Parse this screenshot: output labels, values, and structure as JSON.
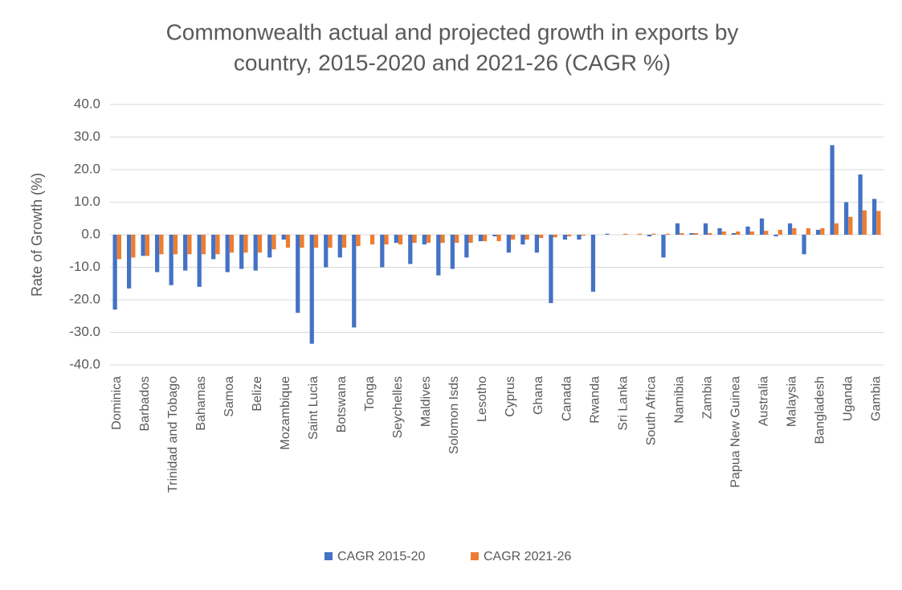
{
  "chart_data": {
    "type": "bar",
    "title": [
      "Commonwealth actual and projected growth in exports by",
      "country, 2015-2020 and 2021-26 (CAGR %)"
    ],
    "y_label": "Rate of Growth (%)",
    "categories": [
      "Dominica",
      null,
      "Barbados",
      null,
      "Trinidad and Tobago",
      null,
      "Bahamas",
      null,
      "Samoa",
      null,
      "Belize",
      null,
      "Mozambique",
      null,
      "Saint Lucia",
      null,
      "Botswana",
      null,
      "Tonga",
      null,
      "Seychelles",
      null,
      "Maldives",
      null,
      "Solomon Isds",
      null,
      "Lesotho",
      null,
      "Cyprus",
      null,
      "Ghana",
      null,
      "Canada",
      null,
      "Rwanda",
      null,
      "Sri Lanka",
      null,
      "South Africa",
      null,
      "Namibia",
      null,
      "Zambia",
      null,
      "Papua New Guinea",
      null,
      "Australia",
      null,
      "Malaysia",
      null,
      "Bangladesh",
      null,
      "Uganda",
      null,
      "Gambia"
    ],
    "series": [
      {
        "name": "CAGR 2015-20",
        "color": "#4472c4",
        "values": [
          -23,
          -16.5,
          -6.5,
          -11.5,
          -15.5,
          -11,
          -16,
          -7.5,
          -11.5,
          -10.5,
          -11,
          -7,
          -1.5,
          -24,
          -33.5,
          -10,
          -7,
          -28.5,
          0,
          -10,
          -2.5,
          -9,
          -3,
          -12.5,
          -10.5,
          -7,
          -2,
          -0.5,
          -5.5,
          -3,
          -5.5,
          -21,
          -1.5,
          -1.5,
          -17.5,
          0.3,
          0,
          0,
          -0.5,
          -7,
          3.5,
          0.5,
          3.5,
          2,
          0.5,
          2.5,
          5,
          -0.5,
          3.5,
          -6,
          1.5,
          27.5,
          10,
          18.5,
          11
        ]
      },
      {
        "name": "CAGR 2021-26",
        "color": "#ed7d31",
        "values": [
          -7.5,
          -7,
          -6.5,
          -6,
          -6,
          -6,
          -6,
          -6,
          -5.5,
          -5.5,
          -5.5,
          -4.5,
          -4,
          -4,
          -4,
          -4,
          -4,
          -3.5,
          -3,
          -3,
          -3,
          -2.5,
          -2.5,
          -2.5,
          -2.5,
          -2.5,
          -2,
          -2,
          -1.5,
          -1.5,
          -1,
          -0.8,
          -0.5,
          -0.3,
          0,
          0,
          0.3,
          0.3,
          0.3,
          0.3,
          0.5,
          0.5,
          0.5,
          1,
          1,
          1,
          1.2,
          1.5,
          2,
          2,
          2,
          3.5,
          5.5,
          7.5,
          7.3
        ]
      }
    ],
    "ylim": [
      -40,
      40
    ],
    "yticks": [
      {
        "value": -40,
        "label": "-40.0"
      },
      {
        "value": -30,
        "label": "-30.0"
      },
      {
        "value": -20,
        "label": "-20.0"
      },
      {
        "value": -10,
        "label": "-10.0"
      },
      {
        "value": 0,
        "label": "0.0"
      },
      {
        "value": 10,
        "label": "10.0"
      },
      {
        "value": 20,
        "label": "20.0"
      },
      {
        "value": 30,
        "label": "30.0"
      },
      {
        "value": 40,
        "label": "40.0"
      }
    ],
    "grid": true,
    "legend": "bottom"
  }
}
